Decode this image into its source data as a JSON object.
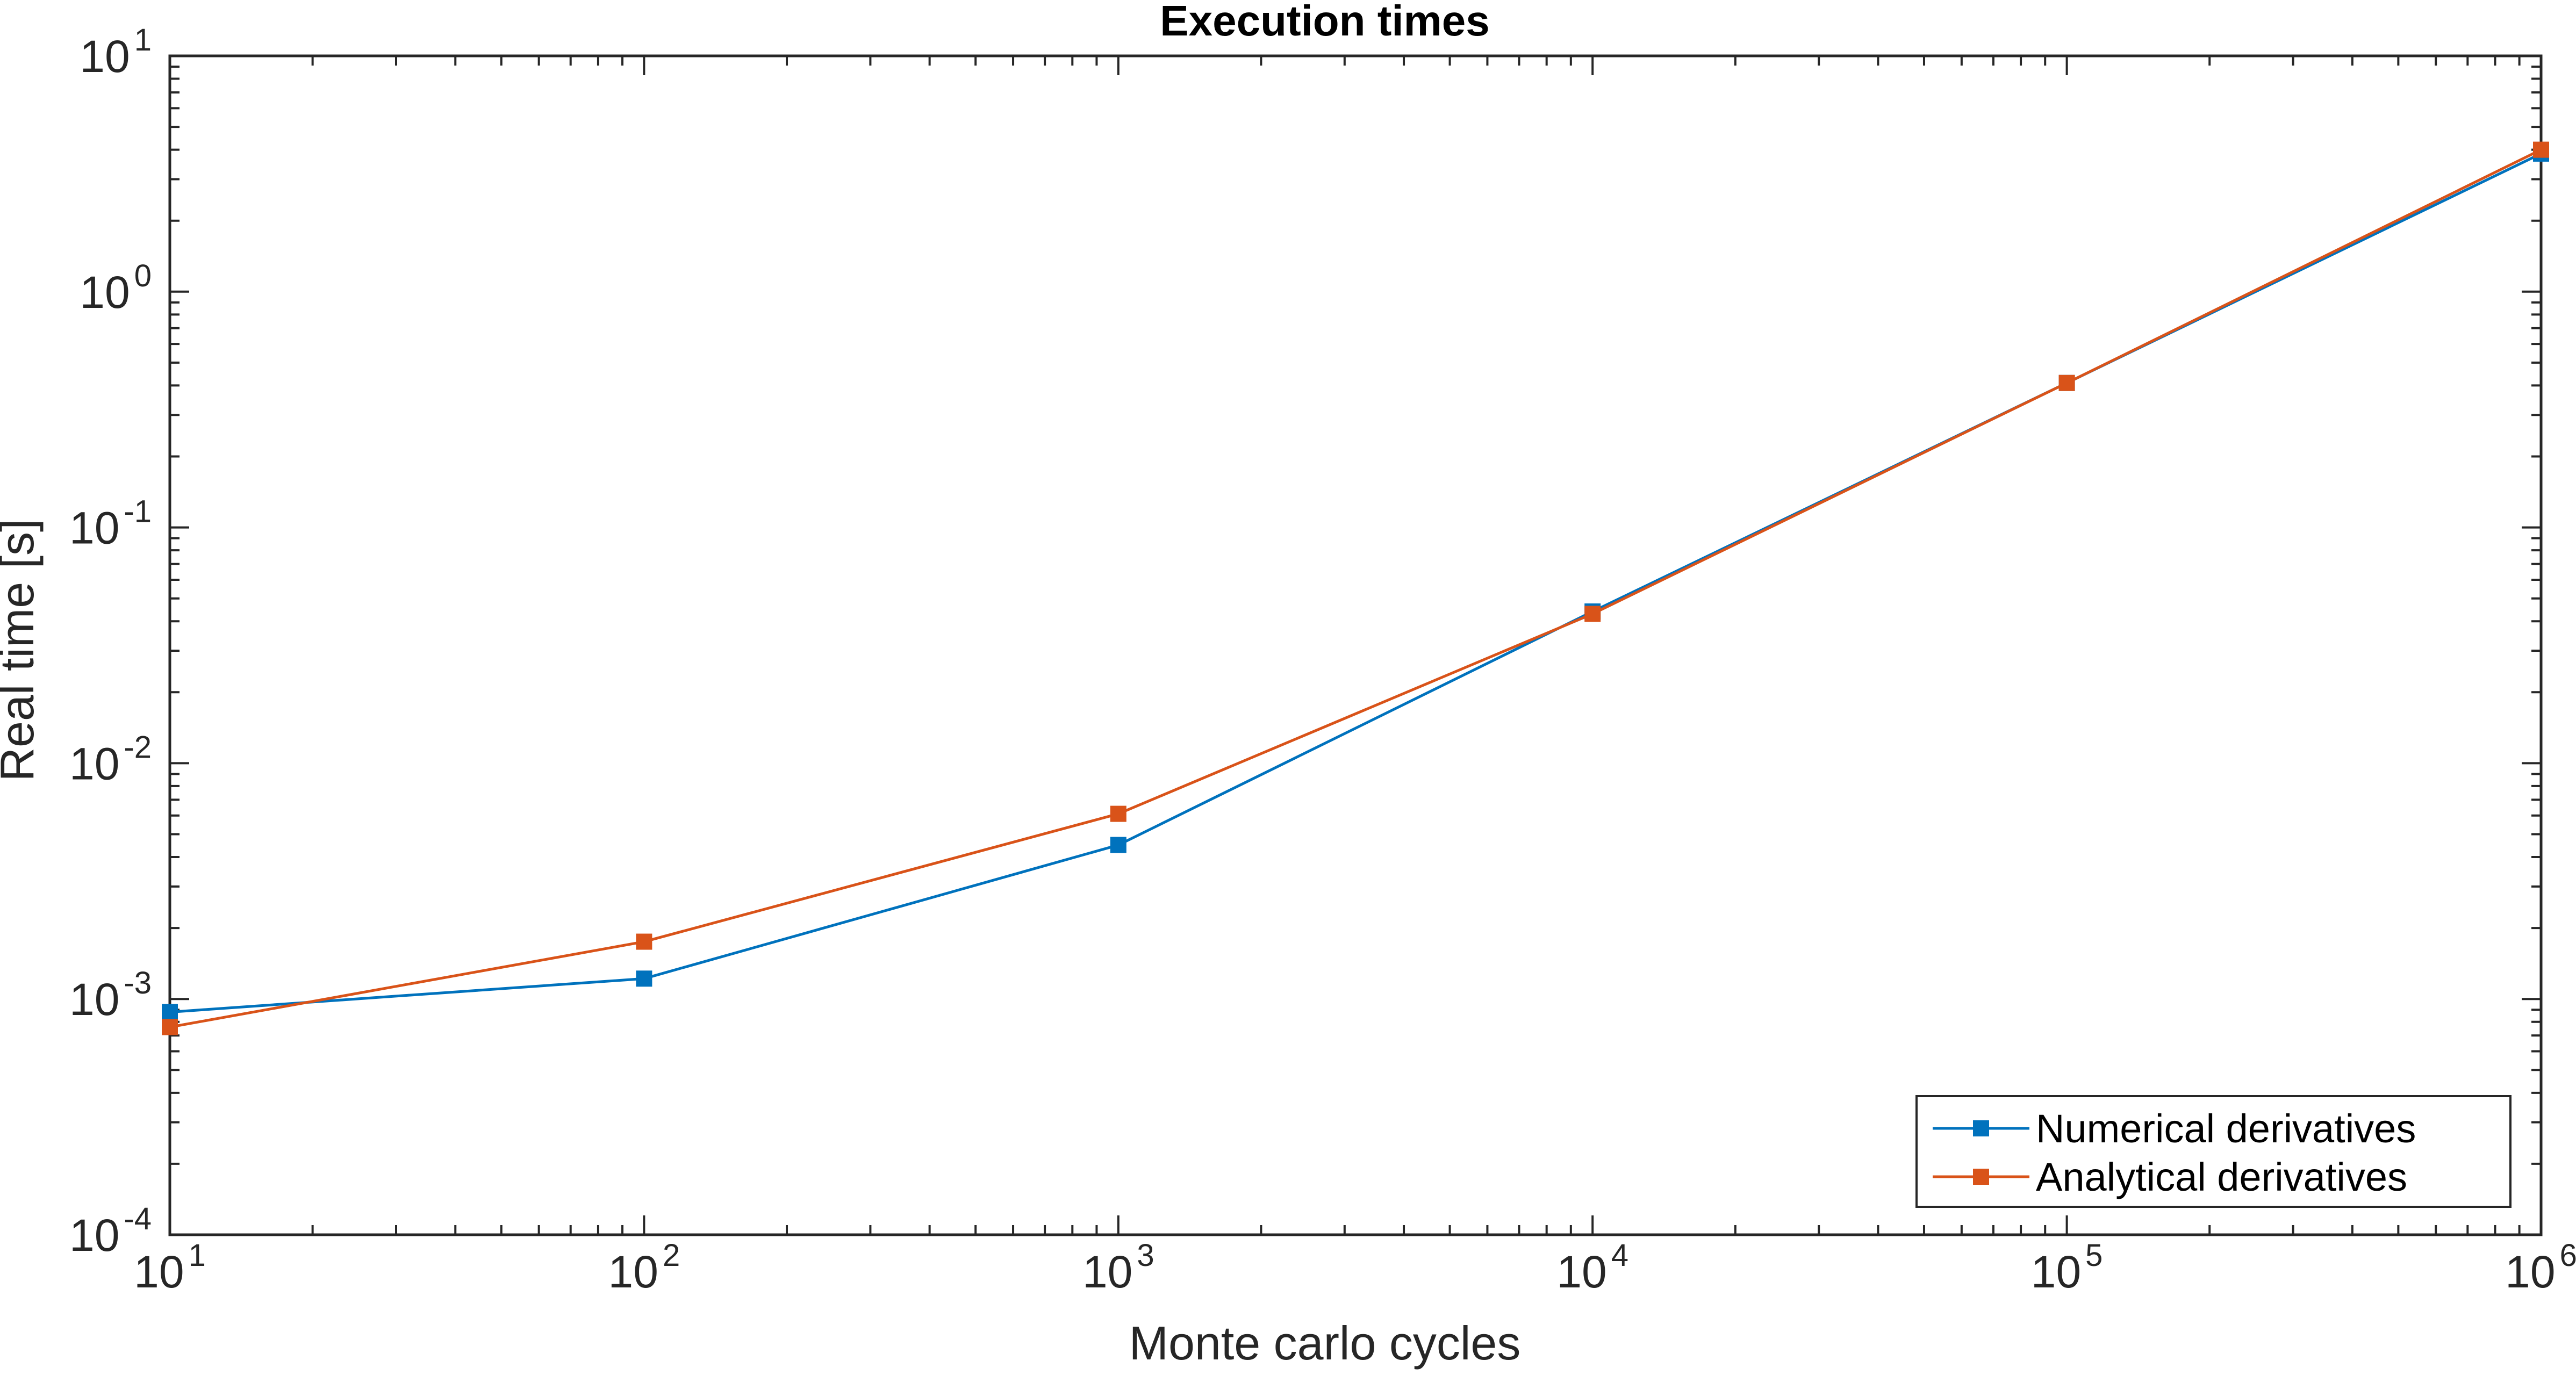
{
  "chart_data": {
    "type": "line",
    "title": "Execution times",
    "xlabel": "Monte carlo cycles",
    "ylabel": "Real time [s]",
    "x_scale": "log",
    "y_scale": "log",
    "xlim": [
      10,
      1000000
    ],
    "ylim": [
      0.0001,
      10
    ],
    "x_ticks": [
      {
        "base": "10",
        "exp": "1",
        "value": 10
      },
      {
        "base": "10",
        "exp": "2",
        "value": 100
      },
      {
        "base": "10",
        "exp": "3",
        "value": 1000
      },
      {
        "base": "10",
        "exp": "4",
        "value": 10000
      },
      {
        "base": "10",
        "exp": "5",
        "value": 100000
      },
      {
        "base": "10",
        "exp": "6",
        "value": 1000000
      }
    ],
    "y_ticks": [
      {
        "base": "10",
        "exp": "-4",
        "value": 0.0001
      },
      {
        "base": "10",
        "exp": "-3",
        "value": 0.001
      },
      {
        "base": "10",
        "exp": "-2",
        "value": 0.01
      },
      {
        "base": "10",
        "exp": "-1",
        "value": 0.1
      },
      {
        "base": "10",
        "exp": "0",
        "value": 1
      },
      {
        "base": "10",
        "exp": "1",
        "value": 10
      }
    ],
    "grid": false,
    "legend_position": "bottom-right",
    "x": [
      10,
      100,
      1000,
      10000,
      100000,
      1000000
    ],
    "series": [
      {
        "name": "Numerical derivatives",
        "color": "#0072BD",
        "marker": "square",
        "values": [
          0.00088,
          0.00122,
          0.0045,
          0.044,
          0.41,
          3.85
        ]
      },
      {
        "name": "Analytical derivatives",
        "color": "#D95319",
        "marker": "square",
        "values": [
          0.00076,
          0.00175,
          0.0061,
          0.043,
          0.41,
          4.0
        ]
      }
    ]
  }
}
